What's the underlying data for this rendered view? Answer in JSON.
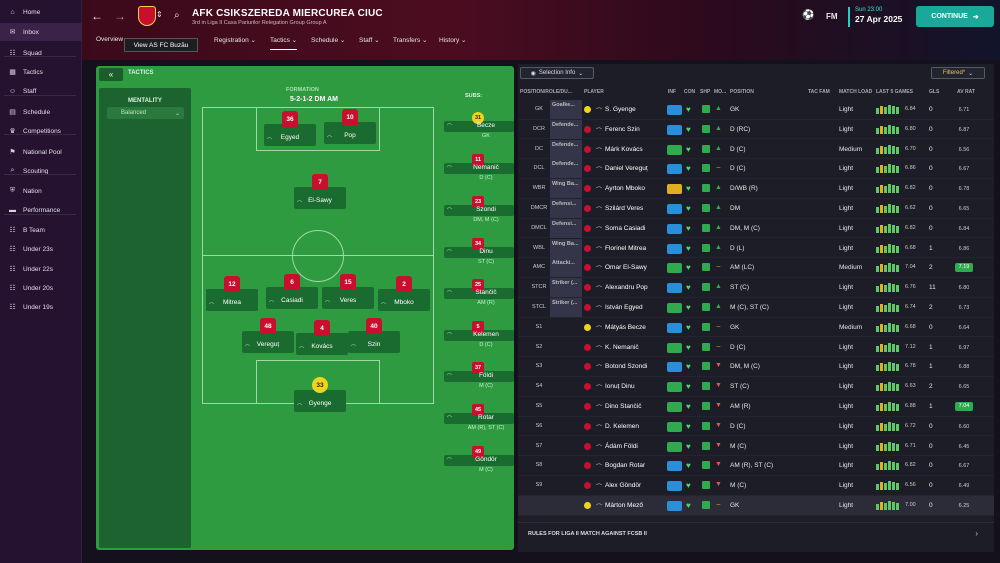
{
  "sidebar": {
    "items": [
      {
        "icon": "home-icon",
        "glyph": "⌂",
        "label": "Home"
      },
      {
        "icon": "inbox-icon",
        "glyph": "✉",
        "label": "Inbox"
      },
      {
        "icon": "squad-icon",
        "glyph": "☷",
        "label": "Squad"
      },
      {
        "icon": "tactics-icon",
        "glyph": "▦",
        "label": "Tactics"
      },
      {
        "icon": "staff-icon",
        "glyph": "☺",
        "label": "Staff"
      },
      {
        "icon": "schedule-icon",
        "glyph": "▤",
        "label": "Schedule"
      },
      {
        "icon": "trophy-icon",
        "glyph": "♛",
        "label": "Competitions"
      },
      {
        "icon": "flag-icon",
        "glyph": "⚑",
        "label": "National Pool"
      },
      {
        "icon": "scouting-icon",
        "glyph": "⌕",
        "label": "Scouting"
      },
      {
        "icon": "shield-icon",
        "glyph": "⛨",
        "label": "Nation"
      },
      {
        "icon": "performance-icon",
        "glyph": "▬",
        "label": "Performance"
      },
      {
        "icon": "b-team-icon",
        "glyph": "☷",
        "label": "B Team"
      },
      {
        "icon": "under23-icon",
        "glyph": "☷",
        "label": "Under 23s"
      },
      {
        "icon": "under22-icon",
        "glyph": "☷",
        "label": "Under 22s"
      },
      {
        "icon": "under20-icon",
        "glyph": "☷",
        "label": "Under 20s"
      },
      {
        "icon": "under19-icon",
        "glyph": "☷",
        "label": "Under 19s"
      }
    ]
  },
  "header": {
    "club_name": "AFK CSIKSZEREDA MIERCUREA CIUC",
    "club_sub": "3rd in Liga II Casa Pariurilor Relegation Group Group A",
    "time": "Sun 23:00",
    "date": "27 Apr 2025",
    "continue": "CONTINUE",
    "fm_label": "FM",
    "tooltip": "View AS FC Buzău"
  },
  "tabs": [
    "Overview",
    "",
    "Registration",
    "Tactics",
    "Schedule",
    "Staff",
    "Transfers",
    "History"
  ],
  "tactics": {
    "title": "TACTICS",
    "collapse": "«",
    "mentality_label": "MENTALITY",
    "mentality_value": "Balanced",
    "formation_label": "FORMATION",
    "formation_value": "5-2-1-2 DM AM",
    "subs_label": "SUBS:"
  },
  "pitch_players": [
    {
      "num": "36",
      "name": "Egyed"
    },
    {
      "num": "10",
      "name": "Pop"
    },
    {
      "num": "7",
      "name": "El-Sawy"
    },
    {
      "num": "12",
      "name": "Mitrea"
    },
    {
      "num": "6",
      "name": "Casiadi"
    },
    {
      "num": "15",
      "name": "Veres"
    },
    {
      "num": "2",
      "name": "Mboko"
    },
    {
      "num": "48",
      "name": "Vereguț"
    },
    {
      "num": "4",
      "name": "Kovács"
    },
    {
      "num": "40",
      "name": "Szin"
    },
    {
      "num": "33",
      "name": "Gyenge"
    }
  ],
  "subs": [
    {
      "num": "31",
      "name": "Becze",
      "pos": "GK"
    },
    {
      "num": "11",
      "name": "Nemanič",
      "pos": "D (C)"
    },
    {
      "num": "23",
      "name": "Szondi",
      "pos": "DM, M (C)"
    },
    {
      "num": "34",
      "name": "Dinu",
      "pos": "ST (C)"
    },
    {
      "num": "25",
      "name": "Stančič",
      "pos": "AM (R)"
    },
    {
      "num": "5",
      "name": "Kelemen",
      "pos": "D (C)"
    },
    {
      "num": "37",
      "name": "Földi",
      "pos": "M (C)"
    },
    {
      "num": "45",
      "name": "Rotar",
      "pos": "AM (R), ST (C)"
    },
    {
      "num": "49",
      "name": "Göndör",
      "pos": "M (C)"
    }
  ],
  "list": {
    "selection": "Selection Info",
    "filter": "Filtered*",
    "headers": [
      "POSITION/ROLE/DU...",
      "PLAYER",
      "INF",
      "CON",
      "SHP",
      "MO...",
      "POSITION",
      "TAC FAM",
      "MATCH LOAD",
      "LAST 5 GAMES",
      "GLS",
      "AV RAT"
    ],
    "rows": [
      {
        "slot": "GK",
        "role": "Goalke...",
        "name": "S. Gyenge",
        "pos": "GK",
        "load": "Light",
        "avg": "6.84",
        "gls": "0",
        "rat": "6.71"
      },
      {
        "slot": "DCR",
        "role": "Defende...",
        "name": "Ferenc Szin",
        "pos": "D (RC)",
        "load": "Light",
        "avg": "6.80",
        "gls": "0",
        "rat": "6.87"
      },
      {
        "slot": "DC",
        "role": "Defende...",
        "name": "Márk Kovács",
        "pos": "D (C)",
        "load": "Medium",
        "avg": "6.70",
        "gls": "0",
        "rat": "6.56"
      },
      {
        "slot": "DCL",
        "role": "Defende...",
        "name": "Daniel Vereguț",
        "pos": "D (C)",
        "load": "Light",
        "avg": "6.86",
        "gls": "0",
        "rat": "6.67"
      },
      {
        "slot": "WBR",
        "role": "Wing Ba...",
        "name": "Ayrton Mboko",
        "pos": "D/WB (R)",
        "load": "Light",
        "avg": "6.82",
        "gls": "0",
        "rat": "6.78"
      },
      {
        "slot": "DMCR",
        "role": "Defensi...",
        "name": "Szilárd Veres",
        "pos": "DM",
        "load": "Light",
        "avg": "6.62",
        "gls": "0",
        "rat": "6.65"
      },
      {
        "slot": "DMCL",
        "role": "Defensi...",
        "name": "Soma Casiadi",
        "pos": "DM, M (C)",
        "load": "Light",
        "avg": "6.82",
        "gls": "0",
        "rat": "6.84"
      },
      {
        "slot": "WBL",
        "role": "Wing Ba...",
        "name": "Florinel Mitrea",
        "pos": "D (L)",
        "load": "Light",
        "avg": "6.68",
        "gls": "1",
        "rat": "6.86"
      },
      {
        "slot": "AMC",
        "role": "Attacki...",
        "name": "Omar El-Sawy",
        "pos": "AM (LC)",
        "load": "Medium",
        "avg": "7.04",
        "gls": "2",
        "rat": "7.19"
      },
      {
        "slot": "STCR",
        "role": "Striker (...",
        "name": "Alexandru Pop",
        "pos": "ST (C)",
        "load": "Light",
        "avg": "6.76",
        "gls": "11",
        "rat": "6.80"
      },
      {
        "slot": "STCL",
        "role": "Striker (...",
        "name": "István Egyed",
        "pos": "M (C), ST (C)",
        "load": "Light",
        "avg": "6.74",
        "gls": "2",
        "rat": "6.73"
      },
      {
        "slot": "S1",
        "role": "",
        "name": "Mátyás Becze",
        "pos": "GK",
        "load": "Medium",
        "avg": "6.68",
        "gls": "0",
        "rat": "6.64"
      },
      {
        "slot": "S2",
        "role": "",
        "name": "K. Nemanič",
        "pos": "D (C)",
        "load": "Light",
        "avg": "7.12",
        "gls": "1",
        "rat": "6.97"
      },
      {
        "slot": "S3",
        "role": "",
        "name": "Botond Szondi",
        "pos": "DM, M (C)",
        "load": "Light",
        "avg": "6.78",
        "gls": "1",
        "rat": "6.88"
      },
      {
        "slot": "S4",
        "role": "",
        "name": "Ionuț Dinu",
        "pos": "ST (C)",
        "load": "Light",
        "avg": "6.63",
        "gls": "2",
        "rat": "6.65"
      },
      {
        "slot": "S5",
        "role": "",
        "name": "Dino Stančič",
        "pos": "AM (R)",
        "load": "Light",
        "avg": "6.88",
        "gls": "1",
        "rat": "7.04"
      },
      {
        "slot": "S6",
        "role": "",
        "name": "D. Kelemen",
        "pos": "D (C)",
        "load": "Light",
        "avg": "6.72",
        "gls": "0",
        "rat": "6.60"
      },
      {
        "slot": "S7",
        "role": "",
        "name": "Ádám Földi",
        "pos": "M (C)",
        "load": "Light",
        "avg": "6.71",
        "gls": "0",
        "rat": "6.45"
      },
      {
        "slot": "S8",
        "role": "",
        "name": "Bogdan Rotar",
        "pos": "AM (R), ST (C)",
        "load": "Light",
        "avg": "6.82",
        "gls": "0",
        "rat": "6.67"
      },
      {
        "slot": "S9",
        "role": "",
        "name": "Alex Göndör",
        "pos": "M (C)",
        "load": "Light",
        "avg": "6.56",
        "gls": "0",
        "rat": "6.49"
      },
      {
        "slot": "",
        "role": "",
        "name": "Márton Mező",
        "pos": "GK",
        "load": "Light",
        "avg": "7.00",
        "gls": "0",
        "rat": "6.25"
      }
    ],
    "rules": "RULES FOR LIGA II MATCH AGAINST FCSB II"
  },
  "colors": {
    "accent": "#1aa89a",
    "pitch": "#2f9b40",
    "shirt": "#c8102e",
    "gk_shirt": "#f0d41c"
  }
}
